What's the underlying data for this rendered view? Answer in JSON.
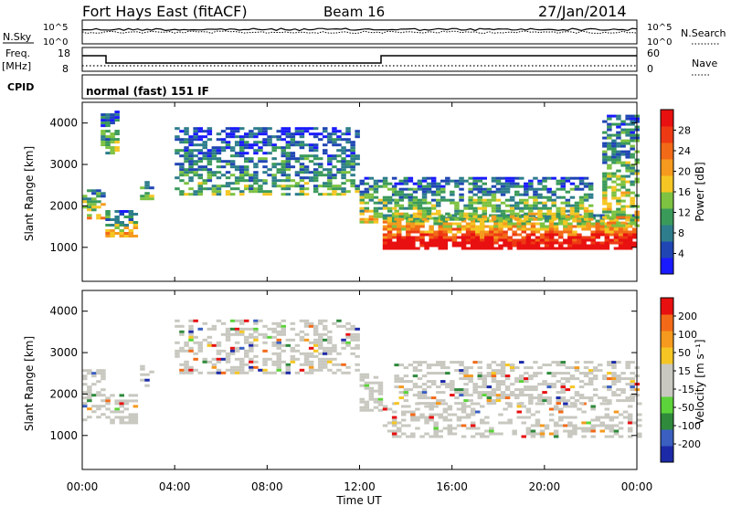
{
  "header": {
    "station": "Fort Hays East (fitACF)",
    "beam": "Beam 16",
    "date": "27/Jan/2014"
  },
  "params": {
    "nsky_label": "N.Sky",
    "nsearch_label": "N.Search",
    "nsky_ticks": [
      "10^5",
      "10^0"
    ],
    "nsearch_ticks": [
      "10^5",
      "10^0"
    ],
    "freq_label": "Freq.",
    "freq_unit": "[MHz]",
    "freq_ticks": [
      "18",
      "8"
    ],
    "nave_label": "Nave",
    "nave_ticks": [
      "60",
      "0"
    ],
    "cpid_label": "CPID",
    "cpid_text": "normal (fast) 151 IF"
  },
  "chart_data": [
    {
      "type": "heatmap",
      "name": "power",
      "ylabel": "Slant Range [km]",
      "xlabel": "",
      "xlim": [
        0,
        24
      ],
      "ylim": [
        180,
        4500
      ],
      "x_ticks": [
        "00:00",
        "04:00",
        "08:00",
        "12:00",
        "16:00",
        "20:00",
        "00:00"
      ],
      "y_ticks": [
        "1000",
        "2000",
        "3000",
        "4000"
      ],
      "colorbar": {
        "label": "Power [dB]",
        "ticks": [
          "4",
          "8",
          "12",
          "16",
          "20",
          "24",
          "28"
        ],
        "range": [
          0,
          30
        ],
        "colors": [
          "#1a1aff",
          "#2046b4",
          "#2e7d8c",
          "#3a9a5a",
          "#7dc241",
          "#f5c623",
          "#f59a1e",
          "#f26a18",
          "#ee3a14",
          "#e81010"
        ]
      },
      "bands": [
        {
          "start": 0.0,
          "end": 1.0,
          "range": [
            1700,
            2400
          ],
          "level": 0.55
        },
        {
          "start": 1.0,
          "end": 2.3,
          "range": [
            1300,
            1900
          ],
          "level": 0.5
        },
        {
          "start": 0.8,
          "end": 1.6,
          "range": [
            3300,
            4300
          ],
          "level": 0.35
        },
        {
          "start": 2.5,
          "end": 3.0,
          "range": [
            2200,
            2600
          ],
          "level": 0.4
        },
        {
          "start": 4.0,
          "end": 12.0,
          "range": [
            2300,
            3900
          ],
          "level": 0.3
        },
        {
          "start": 12.0,
          "end": 13.5,
          "range": [
            1600,
            2700
          ],
          "level": 0.45
        },
        {
          "start": 13.0,
          "end": 23.8,
          "range": [
            1000,
            1800
          ],
          "level": 0.85
        },
        {
          "start": 13.5,
          "end": 22.0,
          "range": [
            1700,
            2700
          ],
          "level": 0.4
        },
        {
          "start": 22.5,
          "end": 24.0,
          "range": [
            1500,
            4200
          ],
          "level": 0.45
        }
      ]
    },
    {
      "type": "heatmap",
      "name": "velocity",
      "ylabel": "Slant Range [km]",
      "xlabel": "Time UT",
      "xlim": [
        0,
        24
      ],
      "ylim": [
        180,
        4500
      ],
      "x_ticks": [
        "00:00",
        "04:00",
        "08:00",
        "12:00",
        "16:00",
        "20:00",
        "00:00"
      ],
      "y_ticks": [
        "1000",
        "2000",
        "3000",
        "4000"
      ],
      "colorbar": {
        "label": "Velocity [m s⁻¹]",
        "ticks": [
          "200",
          "100",
          "50",
          "15",
          "-15",
          "-50",
          "-100",
          "-200"
        ],
        "range": [
          -250,
          250
        ],
        "colors": [
          "#1c2aa8",
          "#3a5fc0",
          "#2f8a3c",
          "#5cd33a",
          "#c8c8c0",
          "#c8c8c0",
          "#f5c623",
          "#f59a1e",
          "#f26a18",
          "#e81010"
        ]
      },
      "ground_scatter_color": "#c8c8c0",
      "bands": [
        {
          "start": 0.0,
          "end": 1.0,
          "range": [
            1400,
            2600
          ],
          "level": 0.0
        },
        {
          "start": 1.0,
          "end": 2.3,
          "range": [
            1300,
            2000
          ],
          "level": 0.0
        },
        {
          "start": 2.5,
          "end": 3.0,
          "range": [
            2200,
            2700
          ],
          "level": 0.0
        },
        {
          "start": 4.0,
          "end": 12.0,
          "range": [
            2500,
            3800
          ],
          "level": 0.0
        },
        {
          "start": 12.0,
          "end": 13.0,
          "range": [
            1600,
            2500
          ],
          "level": 0.3
        },
        {
          "start": 13.0,
          "end": 24.0,
          "range": [
            1000,
            1800
          ],
          "level": 0.0
        },
        {
          "start": 13.5,
          "end": 24.0,
          "range": [
            1800,
            2800
          ],
          "level": -0.1
        }
      ]
    }
  ]
}
